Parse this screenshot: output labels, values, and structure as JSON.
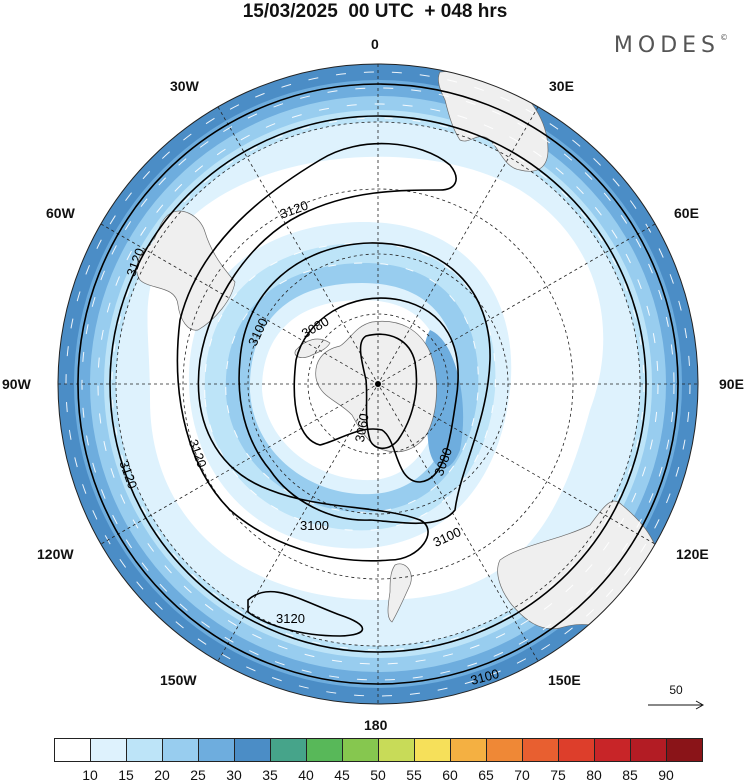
{
  "title": "15/03/2025  00 UTC  + 048 hrs",
  "logo": "MODES",
  "logo_mark": "©",
  "map": {
    "projection": "south-polar-stereographic",
    "longitude_labels": [
      "0",
      "30E",
      "60E",
      "90E",
      "120E",
      "150E",
      "180",
      "150W",
      "120W",
      "90W",
      "60W",
      "30W"
    ],
    "contour_labels": [
      "3060",
      "3080",
      "3080",
      "3100",
      "3100",
      "3100",
      "3100",
      "3100",
      "3100",
      "3120",
      "3120",
      "3120",
      "3120",
      "3120"
    ],
    "reference_vector": "50",
    "colors": {
      "land": "#efefef",
      "ocean": "#ffffff",
      "contour": "#000000",
      "grid": "#222222"
    }
  },
  "colorbar": {
    "labels": [
      "10",
      "15",
      "20",
      "25",
      "30",
      "35",
      "40",
      "45",
      "50",
      "55",
      "60",
      "65",
      "70",
      "75",
      "80",
      "85",
      "90"
    ],
    "colors": [
      "#ffffff",
      "#def2fd",
      "#bde4f8",
      "#98cdef",
      "#6eadde",
      "#4b8dc6",
      "#46a48a",
      "#58b859",
      "#86c74f",
      "#c8db58",
      "#f6e05a",
      "#f4b042",
      "#ef8836",
      "#e85f30",
      "#dd3e2b",
      "#c82528",
      "#b31c24",
      "#8a1418"
    ]
  }
}
